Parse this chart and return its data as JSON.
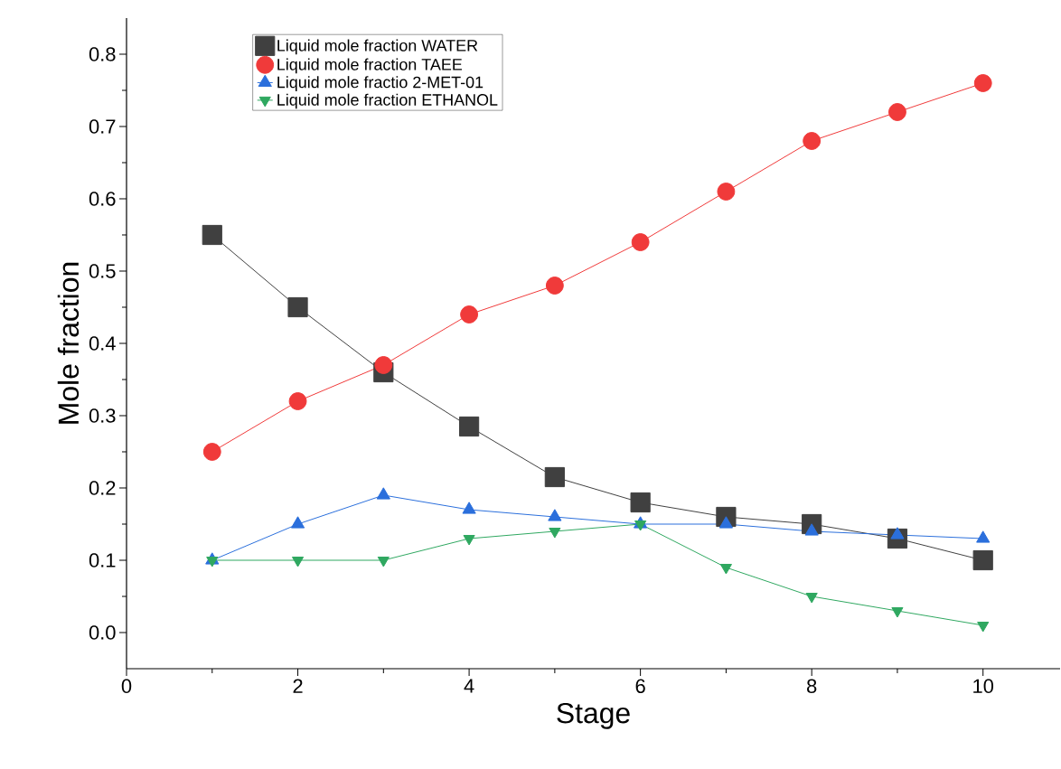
{
  "chart_data": {
    "type": "line",
    "xlabel": "Stage",
    "ylabel": "Mole fraction",
    "x": [
      1,
      2,
      3,
      4,
      5,
      6,
      7,
      8,
      9,
      10
    ],
    "series": [
      {
        "name": "Liquid mole fraction WATER",
        "color": "#404040",
        "marker": "square",
        "values": [
          0.55,
          0.45,
          0.36,
          0.285,
          0.215,
          0.18,
          0.16,
          0.15,
          0.13,
          0.1
        ]
      },
      {
        "name": "Liquid mole fraction TAEE",
        "color": "#f03a3a",
        "marker": "circle",
        "values": [
          0.25,
          0.32,
          0.37,
          0.44,
          0.48,
          0.54,
          0.61,
          0.68,
          0.72,
          0.76
        ]
      },
      {
        "name": "Liquid mole fractio 2-MET-01",
        "color": "#2b6fdc",
        "marker": "triangle",
        "values": [
          0.1,
          0.15,
          0.19,
          0.17,
          0.16,
          0.15,
          0.15,
          0.14,
          0.135,
          0.13
        ]
      },
      {
        "name": "Liquid mole fraction ETHANOL",
        "color": "#2fa860",
        "marker": "triangle-down",
        "values": [
          0.1,
          0.1,
          0.1,
          0.13,
          0.14,
          0.15,
          0.09,
          0.05,
          0.03,
          0.01
        ]
      }
    ],
    "xlim": [
      0,
      10.9
    ],
    "ylim": [
      -0.05,
      0.85
    ],
    "xticks": [
      0,
      2,
      4,
      6,
      8,
      10
    ],
    "yticks": [
      {
        "value": 0,
        "label": "0.0"
      },
      0.1,
      0.2,
      0.3,
      0.4,
      0.5,
      0.6,
      0.7,
      0.8
    ],
    "grid": false,
    "legend": "top left",
    "line_style": "solid"
  }
}
